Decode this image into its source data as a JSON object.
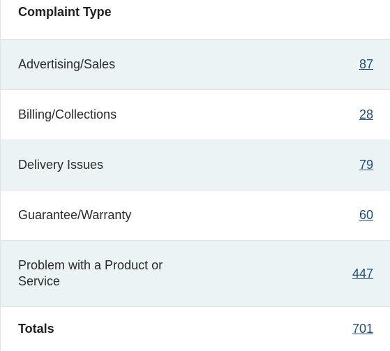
{
  "table": {
    "header": "Complaint Type",
    "rows": [
      {
        "label": "Advertising/Sales",
        "count": "87"
      },
      {
        "label": "Billing/Collections",
        "count": "28"
      },
      {
        "label": "Delivery Issues",
        "count": "79"
      },
      {
        "label": "Guarantee/Warranty",
        "count": "60"
      },
      {
        "label": "Problem with a Product or Service",
        "count": "447"
      }
    ],
    "totals": {
      "label": "Totals",
      "count": "701"
    }
  },
  "colors": {
    "shaded_row": "#ecf3f5",
    "link": "#1f4e79",
    "border": "#dfe4e6"
  }
}
